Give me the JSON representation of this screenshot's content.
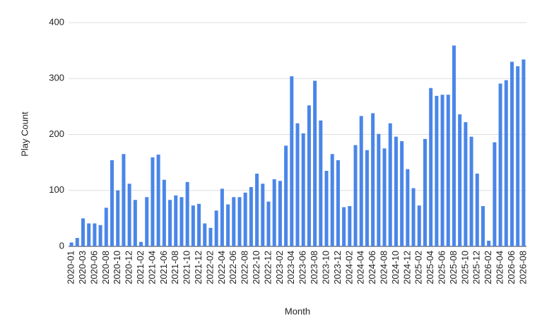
{
  "chart_data": {
    "type": "bar",
    "x_label": "Month",
    "y_label": "Play Count",
    "categories": [
      "2020-01",
      null,
      "2020-03",
      null,
      "2020-06",
      null,
      "2020-08",
      null,
      "2020-10",
      null,
      "2020-12",
      null,
      "2021-02",
      null,
      "2021-04",
      null,
      "2021-06",
      null,
      "2021-08",
      null,
      "2021-10",
      null,
      "2021-12",
      null,
      "2022-02",
      null,
      "2022-04",
      null,
      "2022-06",
      null,
      "2022-08",
      null,
      "2022-10",
      null,
      "2022-12",
      null,
      "2023-02",
      null,
      "2023-04",
      null,
      "2023-06",
      null,
      "2023-08",
      null,
      "2023-10",
      null,
      "2023-12",
      null,
      "2024-02",
      null,
      "2024-04",
      null,
      "2024-06",
      null,
      "2024-08",
      null,
      "2024-10",
      null,
      "2024-12",
      null,
      "2025-02",
      null,
      "2025-04",
      null,
      "2025-06",
      null,
      "2025-08",
      null,
      "2025-10",
      null,
      "2025-12",
      null,
      "2026-02",
      null,
      "2026-04",
      null,
      "2026-06",
      null,
      "2026-08"
    ],
    "values": [
      7,
      15,
      50,
      41,
      41,
      38,
      69,
      154,
      100,
      165,
      112,
      83,
      8,
      88,
      159,
      164,
      119,
      83,
      91,
      88,
      115,
      73,
      76,
      41,
      33,
      64,
      103,
      75,
      88,
      88,
      96,
      106,
      130,
      112,
      80,
      120,
      117,
      180,
      304,
      220,
      202,
      252,
      296,
      225,
      135,
      165,
      154,
      70,
      72,
      181,
      233,
      172,
      238,
      201,
      175,
      220,
      196,
      188,
      138,
      104,
      73,
      192,
      283,
      269,
      271,
      271,
      359,
      236,
      222,
      196,
      130,
      72,
      10,
      186,
      291,
      297,
      330,
      322,
      334
    ],
    "color": "#4a86e8",
    "ylim": [
      0,
      400
    ],
    "yticks": [
      0,
      100,
      200,
      300,
      400
    ],
    "grid": true
  }
}
